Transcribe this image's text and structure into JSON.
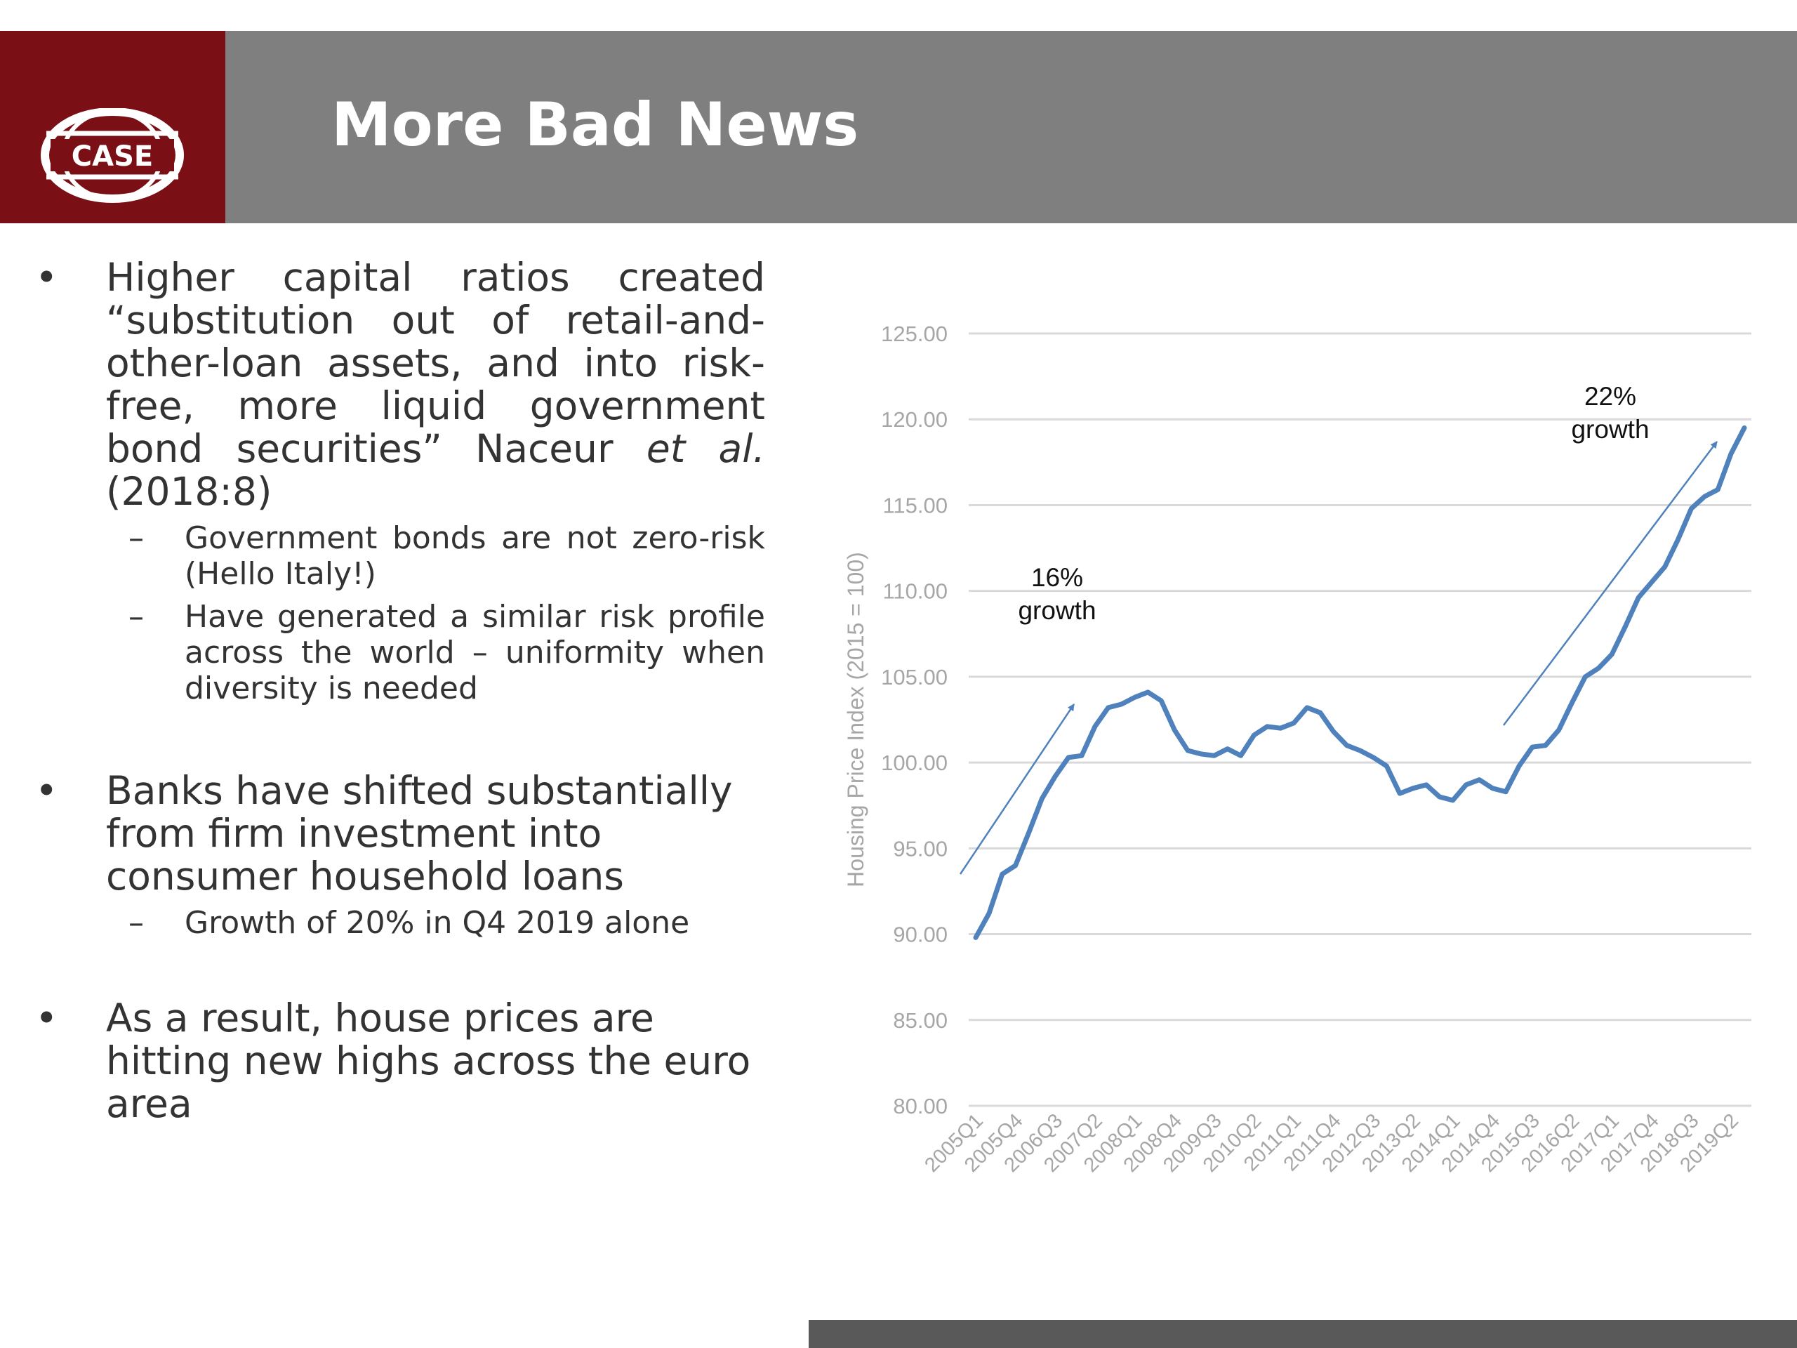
{
  "logo": {
    "text": "CASE",
    "colors": {
      "block": "#7a1015",
      "ring": "#ffffff"
    }
  },
  "slide": {
    "title": "More Bad News"
  },
  "bullets": [
    {
      "text_parts": [
        "Higher capital ratios created “substitution out of retail-and-other-loan assets, and into risk-free, more liquid government bond securities” Naceur ",
        "et al.",
        " (2018:8)"
      ],
      "sub": [
        "Government bonds are not zero-risk (Hello Italy!)",
        "Have generated a similar risk profile across the world – uniformity when diversity is needed"
      ]
    },
    {
      "text": "Banks have shifted substantially from firm investment into consumer household loans",
      "sub": [
        "Growth of 20% in Q4 2019 alone"
      ]
    },
    {
      "text": "As a result, house prices are hitting new highs across the euro area"
    }
  ],
  "chart_data": {
    "type": "line",
    "title": "",
    "xlabel": "",
    "ylabel": "Housing Price Index (2015 = 100)",
    "ylim": [
      80,
      125
    ],
    "y_ticks": [
      "80.00",
      "85.00",
      "90.00",
      "95.00",
      "100.00",
      "105.00",
      "110.00",
      "115.00",
      "120.00",
      "125.00"
    ],
    "x_tick_labels": [
      "2005Q1",
      "2005Q4",
      "2006Q3",
      "2007Q2",
      "2008Q1",
      "2008Q4",
      "2009Q3",
      "2010Q2",
      "2011Q1",
      "2011Q4",
      "2012Q3",
      "2013Q2",
      "2014Q1",
      "2014Q4",
      "2015Q3",
      "2016Q2",
      "2017Q1",
      "2017Q4",
      "2018Q3",
      "2019Q2"
    ],
    "grid": true,
    "line_color": "#4f81bd",
    "series": [
      {
        "values": [
          89.8,
          91.2,
          93.5,
          94.0,
          95.9,
          97.9,
          99.2,
          100.3,
          100.4,
          102.1,
          103.2,
          103.4,
          103.8,
          104.1,
          103.6,
          101.9,
          100.7,
          100.5,
          100.4,
          100.8,
          100.4,
          101.6,
          102.1,
          102.0,
          102.3,
          103.2,
          102.9,
          101.8,
          101.0,
          100.7,
          100.3,
          99.8,
          98.2,
          98.5,
          98.7,
          98.0,
          97.8,
          98.7,
          99.0,
          98.5,
          98.3,
          99.8,
          100.9,
          101.0,
          101.9,
          103.5,
          105.0,
          105.5,
          106.3,
          107.9,
          109.6,
          110.5,
          111.4,
          113.0,
          114.8,
          115.5,
          115.9,
          118.0,
          119.5
        ]
      }
    ],
    "annotations": [
      {
        "line1": "16%",
        "line2": "growth"
      },
      {
        "line1": "22%",
        "line2": "growth"
      }
    ]
  }
}
